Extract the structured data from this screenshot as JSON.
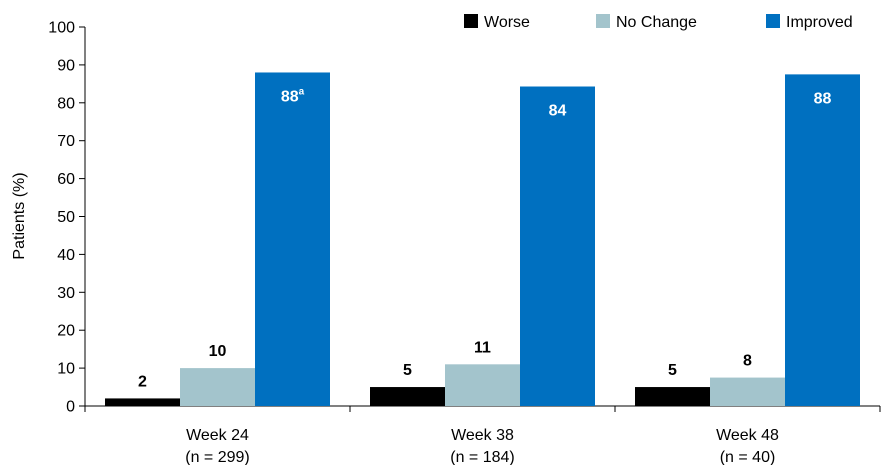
{
  "chart_data": {
    "type": "bar",
    "title": "",
    "xlabel": "",
    "ylabel": "Patients (%)",
    "ylim": [
      0,
      100
    ],
    "yticks": [
      0,
      10,
      20,
      30,
      40,
      50,
      60,
      70,
      80,
      90,
      100
    ],
    "grid": false,
    "legend_position": "top-right",
    "categories": [
      {
        "line1": "Week 24",
        "line2": "(n = 299)"
      },
      {
        "line1": "Week 38",
        "line2": "(n = 184)"
      },
      {
        "line1": "Week 48",
        "line2": "(n = 40)"
      }
    ],
    "series": [
      {
        "name": "Worse",
        "color": "#000000",
        "values": [
          2,
          5,
          5
        ],
        "labels": [
          "2",
          "5",
          "5"
        ],
        "label_position": "above",
        "label_color": "#000000"
      },
      {
        "name": "No Change",
        "color": "#a3c4cc",
        "values": [
          10,
          11,
          7.5
        ],
        "labels": [
          "10",
          "11",
          "8"
        ],
        "label_position": "above",
        "label_color": "#000000"
      },
      {
        "name": "Improved",
        "color": "#0070c0",
        "values": [
          88,
          84.3,
          87.5
        ],
        "labels": [
          "88",
          "84",
          "88"
        ],
        "label_superscripts": [
          "a",
          "",
          ""
        ],
        "label_position": "inside",
        "label_color": "#ffffff"
      }
    ]
  }
}
